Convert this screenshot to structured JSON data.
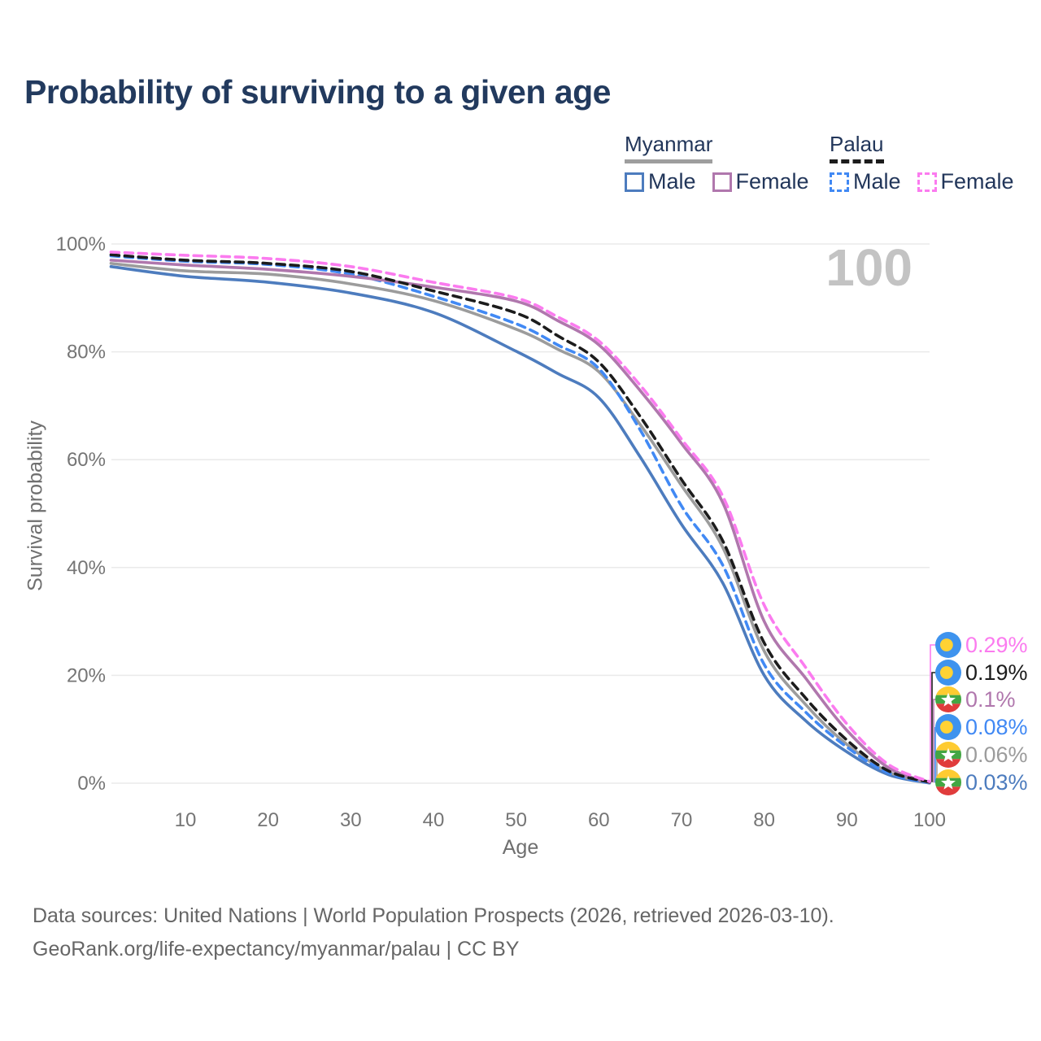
{
  "title": "Probability of surviving to a given age",
  "watermark": "100",
  "legend": {
    "groups": [
      {
        "label": "Myanmar",
        "line_style": "solid",
        "underline_color": "#9e9e9e",
        "items": [
          {
            "label": "Male",
            "color": "#4d7cbe",
            "dashed": false
          },
          {
            "label": "Female",
            "color": "#b077ad",
            "dashed": false
          }
        ]
      },
      {
        "label": "Palau",
        "line_style": "dashed",
        "underline_color": "#1c1c1c",
        "items": [
          {
            "label": "Male",
            "color": "#4189f4",
            "dashed": true
          },
          {
            "label": "Female",
            "color": "#fb7bef",
            "dashed": true
          }
        ]
      }
    ]
  },
  "chart_data": {
    "type": "line",
    "title": "Probability of surviving to a given age",
    "xlabel": "Age",
    "ylabel": "Survival probability",
    "xlim": [
      0,
      100
    ],
    "ylim": [
      0,
      100
    ],
    "grid": "horizontal",
    "x_tick_values": [
      10,
      20,
      30,
      40,
      50,
      60,
      70,
      80,
      90,
      100
    ],
    "x_tick_labels": [
      "10",
      "20",
      "30",
      "40",
      "50",
      "60",
      "70",
      "80",
      "90",
      "100"
    ],
    "y_tick_values": [
      0,
      20,
      40,
      60,
      80,
      100
    ],
    "y_tick_labels": [
      "0%",
      "20%",
      "40%",
      "60%",
      "80%",
      "100%"
    ],
    "x": [
      1,
      10,
      20,
      30,
      40,
      50,
      55,
      60,
      65,
      70,
      75,
      80,
      85,
      90,
      95,
      100
    ],
    "series": [
      {
        "name": "Palau Female",
        "country": "Palau",
        "sex": "Female",
        "color": "#fb7bef",
        "dashed": true,
        "flag": "palau",
        "end_label": "0.29%",
        "values": [
          98.5,
          97.9,
          97.3,
          95.8,
          92.9,
          90.0,
          86.5,
          82.0,
          73.8,
          63.8,
          53.2,
          33.0,
          21.5,
          11.0,
          3.5,
          0.29
        ]
      },
      {
        "name": "Palau",
        "country": "Palau",
        "sex": "Both",
        "color": "#1c1c1c",
        "dashed": true,
        "flag": "palau",
        "end_label": "0.19%",
        "values": [
          98.0,
          97.0,
          96.4,
          94.9,
          91.3,
          87.2,
          83.0,
          78.1,
          68.0,
          56.3,
          44.9,
          26.0,
          15.8,
          8.0,
          2.3,
          0.19
        ]
      },
      {
        "name": "Myanmar Female",
        "country": "Myanmar",
        "sex": "Female",
        "color": "#b077ad",
        "dashed": false,
        "flag": "myanmar",
        "end_label": "0.1%",
        "values": [
          97.0,
          96.1,
          95.3,
          94.0,
          92.0,
          89.4,
          85.8,
          81.3,
          72.8,
          63.0,
          52.0,
          30.0,
          19.5,
          9.8,
          2.9,
          0.1
        ]
      },
      {
        "name": "Palau Male",
        "country": "Palau",
        "sex": "Male",
        "color": "#4189f4",
        "dashed": true,
        "flag": "palau",
        "end_label": "0.08%",
        "values": [
          97.8,
          96.8,
          96.2,
          94.4,
          90.3,
          85.2,
          81.3,
          76.9,
          65.5,
          51.4,
          40.4,
          22.0,
          13.2,
          6.7,
          1.9,
          0.08
        ]
      },
      {
        "name": "Myanmar",
        "country": "Myanmar",
        "sex": "Both",
        "color": "#9c9c9c",
        "dashed": false,
        "flag": "myanmar",
        "end_label": "0.06%",
        "values": [
          96.4,
          95.0,
          94.4,
          92.6,
          89.5,
          84.2,
          80.5,
          76.3,
          66.5,
          55.2,
          43.7,
          24.5,
          14.6,
          7.2,
          2.1,
          0.06
        ]
      },
      {
        "name": "Myanmar Male",
        "country": "Myanmar",
        "sex": "Male",
        "color": "#4d7cbe",
        "dashed": false,
        "flag": "myanmar",
        "end_label": "0.03%",
        "values": [
          95.8,
          94.0,
          92.9,
          90.9,
          87.3,
          80.1,
          76.0,
          71.5,
          60.5,
          48.0,
          37.1,
          20.0,
          11.6,
          5.8,
          1.6,
          0.03
        ]
      }
    ]
  },
  "footer": {
    "line1": "Data sources: United Nations | World Population Prospects (2026, retrieved 2026-03-10).",
    "line2": "GeoRank.org/life-expectancy/myanmar/palau | CC BY"
  }
}
